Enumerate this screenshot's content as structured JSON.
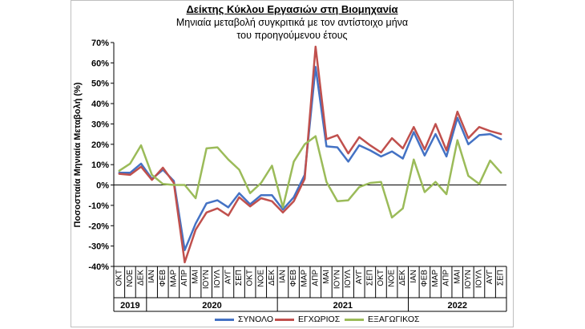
{
  "chart_data": {
    "type": "line",
    "title": "Δείκτης Κύκλου Εργασιών στη Βιομηχανία",
    "subtitle": [
      "Μηνιαία μεταβολή συγκριτικά με τον αντίστοιχο μήνα",
      "του προηγούμενου έτους"
    ],
    "ylabel": "Ποσοστιαία Μηνιαία Μεταβολή (%)",
    "xlabel": "",
    "ylim": [
      -40,
      70
    ],
    "ytick_step": 10,
    "yticks": [
      "-40%",
      "-30%",
      "-20%",
      "-10%",
      "0%",
      "10%",
      "20%",
      "30%",
      "40%",
      "50%",
      "60%",
      "70%"
    ],
    "grid": false,
    "legend_position": "bottom",
    "categories": [
      "ΟΚΤ",
      "ΝΟΕ",
      "ΔΕΚ",
      "ΙΑΝ",
      "ΦΕΒ",
      "ΜΑΡ",
      "ΑΠΡ",
      "ΜΑΙ",
      "ΙΟΥΝ",
      "ΙΟΥΛ",
      "ΑΥΓ",
      "ΣΕΠ",
      "ΟΚΤ",
      "ΝΟΕ",
      "ΔΕΚ",
      "ΙΑΝ",
      "ΦΕΒ",
      "ΜΑΡ",
      "ΑΠΡ",
      "ΜΑΙ",
      "ΙΟΥΝ",
      "ΙΟΥΛ",
      "ΑΥΓ",
      "ΣΕΠ",
      "ΟΚΤ",
      "ΝΟΕ",
      "ΔΕΚ",
      "ΙΑΝ",
      "ΦΕΒ",
      "ΜΑΡ",
      "ΑΠΡ",
      "ΜΑΙ",
      "ΙΟΥΝ",
      "ΙΟΥΛ",
      "ΑΥΓ",
      "ΣΕΠ"
    ],
    "years": [
      {
        "label": "2019",
        "start": 0,
        "end": 2
      },
      {
        "label": "2020",
        "start": 3,
        "end": 14
      },
      {
        "label": "2021",
        "start": 15,
        "end": 26
      },
      {
        "label": "2022",
        "start": 27,
        "end": 35
      }
    ],
    "series": [
      {
        "name": "ΣΥΝΟΛΟ",
        "color": "#4472c4",
        "values": [
          6,
          6,
          10.5,
          3,
          7.5,
          2,
          -32,
          -19,
          -9,
          -7.5,
          -11,
          -4,
          -9.5,
          -5,
          -5,
          -12,
          -6,
          5,
          58,
          19,
          18.5,
          11.5,
          19.5,
          17,
          14,
          16.5,
          13,
          26,
          14.5,
          25,
          14,
          33,
          20,
          24.5,
          25,
          22.5
        ]
      },
      {
        "name": "ΕΓΧΩΡΙΟΣ",
        "color": "#c0504d",
        "values": [
          5.5,
          5,
          9,
          2.5,
          8.5,
          1,
          -38,
          -22,
          -13.5,
          -11.5,
          -15,
          -6,
          -10.5,
          -6.5,
          -8,
          -13.5,
          -8,
          3,
          68,
          22.5,
          24.5,
          15.5,
          23.5,
          19.5,
          16,
          23,
          18,
          28.5,
          17.5,
          30,
          17,
          36,
          23,
          28.5,
          26.5,
          25
        ]
      },
      {
        "name": "ΕΞΑΓΩΓΙΚΟΣ",
        "color": "#9bbb59",
        "values": [
          7,
          10.5,
          19.5,
          5,
          0.5,
          0,
          0,
          -6.5,
          18,
          18.5,
          12.5,
          7.5,
          -4,
          1,
          9.5,
          -11,
          11.5,
          20,
          24,
          1.5,
          -8,
          -7.5,
          -1,
          1,
          1.5,
          -16,
          -11.5,
          12.5,
          -3.5,
          1.5,
          -4.5,
          22,
          4.5,
          0.5,
          12,
          6
        ]
      }
    ]
  }
}
